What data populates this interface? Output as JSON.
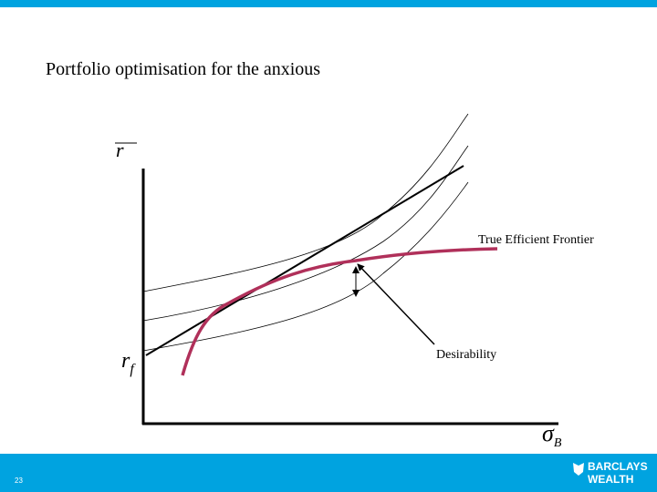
{
  "slide": {
    "title": "Portfolio optimisation for the anxious",
    "y_axis_label": "r",
    "rf_label": {
      "base": "r",
      "sub": "f"
    },
    "x_axis_label": {
      "base": "σ",
      "sub": "B"
    },
    "annotations": [
      "True Efficient Frontier",
      "Desirability"
    ],
    "page_number": "23",
    "logo": {
      "line1": "BARCLAYS",
      "line2": "WEALTH"
    }
  }
}
